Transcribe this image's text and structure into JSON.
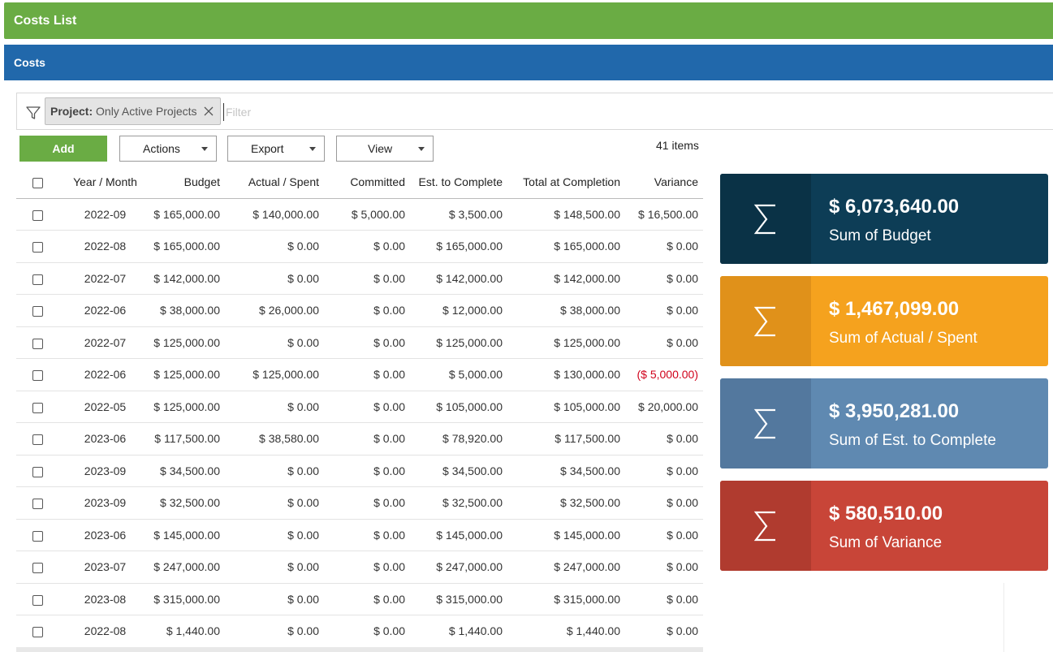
{
  "header": {
    "title": "Costs List"
  },
  "section": {
    "title": "Costs"
  },
  "filter": {
    "chip_key": "Project:",
    "chip_value": "Only Active Projects",
    "placeholder": "Filter"
  },
  "toolbar": {
    "add_label": "Add",
    "actions_label": "Actions",
    "export_label": "Export",
    "view_label": "View",
    "items_count": "41 items"
  },
  "table": {
    "columns": [
      "Year / Month",
      "Budget",
      "Actual / Spent",
      "Committed",
      "Est. to Complete",
      "Total at Completion",
      "Variance"
    ],
    "rows": [
      [
        "2022-09",
        "$ 165,000.00",
        "$ 140,000.00",
        "$ 5,000.00",
        "$ 3,500.00",
        "$ 148,500.00",
        "$ 16,500.00"
      ],
      [
        "2022-08",
        "$ 165,000.00",
        "$ 0.00",
        "$ 0.00",
        "$ 165,000.00",
        "$ 165,000.00",
        "$ 0.00"
      ],
      [
        "2022-07",
        "$ 142,000.00",
        "$ 0.00",
        "$ 0.00",
        "$ 142,000.00",
        "$ 142,000.00",
        "$ 0.00"
      ],
      [
        "2022-06",
        "$ 38,000.00",
        "$ 26,000.00",
        "$ 0.00",
        "$ 12,000.00",
        "$ 38,000.00",
        "$ 0.00"
      ],
      [
        "2022-07",
        "$ 125,000.00",
        "$ 0.00",
        "$ 0.00",
        "$ 125,000.00",
        "$ 125,000.00",
        "$ 0.00"
      ],
      [
        "2022-06",
        "$ 125,000.00",
        "$ 125,000.00",
        "$ 0.00",
        "$ 5,000.00",
        "$ 130,000.00",
        "($ 5,000.00)"
      ],
      [
        "2022-05",
        "$ 125,000.00",
        "$ 0.00",
        "$ 0.00",
        "$ 105,000.00",
        "$ 105,000.00",
        "$ 20,000.00"
      ],
      [
        "2023-06",
        "$ 117,500.00",
        "$ 38,580.00",
        "$ 0.00",
        "$ 78,920.00",
        "$ 117,500.00",
        "$ 0.00"
      ],
      [
        "2023-09",
        "$ 34,500.00",
        "$ 0.00",
        "$ 0.00",
        "$ 34,500.00",
        "$ 34,500.00",
        "$ 0.00"
      ],
      [
        "2023-09",
        "$ 32,500.00",
        "$ 0.00",
        "$ 0.00",
        "$ 32,500.00",
        "$ 32,500.00",
        "$ 0.00"
      ],
      [
        "2023-06",
        "$ 145,000.00",
        "$ 0.00",
        "$ 0.00",
        "$ 145,000.00",
        "$ 145,000.00",
        "$ 0.00"
      ],
      [
        "2023-07",
        "$ 247,000.00",
        "$ 0.00",
        "$ 0.00",
        "$ 247,000.00",
        "$ 247,000.00",
        "$ 0.00"
      ],
      [
        "2023-08",
        "$ 315,000.00",
        "$ 0.00",
        "$ 0.00",
        "$ 315,000.00",
        "$ 315,000.00",
        "$ 0.00"
      ],
      [
        "2022-08",
        "$ 1,440.00",
        "$ 0.00",
        "$ 0.00",
        "$ 1,440.00",
        "$ 1,440.00",
        "$ 0.00"
      ]
    ],
    "negative_color": "#d0021b"
  },
  "summary_cards": [
    {
      "value": "$ 6,073,640.00",
      "label": "Sum of Budget",
      "icon": "sigma-icon",
      "color": "#0d3d56",
      "icon_bg": "#0a3246"
    },
    {
      "value": "$ 1,467,099.00",
      "label": "Sum of Actual / Spent",
      "icon": "sigma-icon",
      "color": "#f5a21e",
      "icon_bg": "#e0911a"
    },
    {
      "value": "$ 3,950,281.00",
      "label": "Sum of Est. to Complete",
      "icon": "sigma-icon",
      "color": "#5f89b1",
      "icon_bg": "#53789e"
    },
    {
      "value": "$ 580,510.00",
      "label": "Sum of Variance",
      "icon": "sigma-icon",
      "color": "#c84538",
      "icon_bg": "#b03b2f"
    }
  ],
  "colors": {
    "title_bar": "#6aac44",
    "section_bar": "#2168ab",
    "add_button": "#6aac44"
  }
}
